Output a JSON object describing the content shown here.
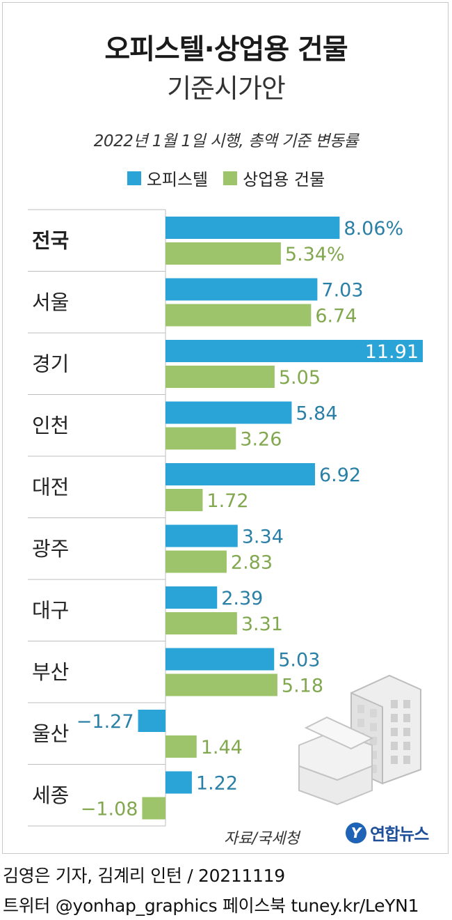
{
  "title": "오피스텔·상업용 건물",
  "subtitle": "기준시가안",
  "note": "2022년 1월 1일 시행, 총액 기준 변동률",
  "source": "자료/국세청",
  "logo_text": "연합뉴스",
  "credit_line1": "김영은 기자, 김계리 인턴 / 20211119",
  "credit_line2": "트위터 @yonhap_graphics  페이스북 tuney.kr/LeYN1",
  "chart_data": {
    "type": "bar",
    "orientation": "horizontal",
    "categories": [
      "전국",
      "서울",
      "경기",
      "인천",
      "대전",
      "광주",
      "대구",
      "부산",
      "울산",
      "세종"
    ],
    "series": [
      {
        "name": "오피스텔",
        "color": "#2aa4d7",
        "label_color": "#2a7fa6",
        "values": [
          8.06,
          7.03,
          11.91,
          5.84,
          6.92,
          3.34,
          2.39,
          5.03,
          -1.27,
          1.22
        ],
        "labels": [
          "8.06%",
          "7.03",
          "11.91",
          "5.84",
          "6.92",
          "3.34",
          "2.39",
          "5.03",
          "−1.27",
          "1.22"
        ]
      },
      {
        "name": "상업용 건물",
        "color": "#9dc46a",
        "label_color": "#82a84f",
        "values": [
          5.34,
          6.74,
          5.05,
          3.26,
          1.72,
          2.83,
          3.31,
          5.18,
          1.44,
          -1.08
        ],
        "labels": [
          "5.34%",
          "6.74",
          "5.05",
          "3.26",
          "1.72",
          "2.83",
          "3.31",
          "5.18",
          "1.44",
          "−1.08"
        ]
      }
    ],
    "unit": "%",
    "xlim": [
      -1.5,
      12.0
    ],
    "legend_position": "top-center"
  }
}
